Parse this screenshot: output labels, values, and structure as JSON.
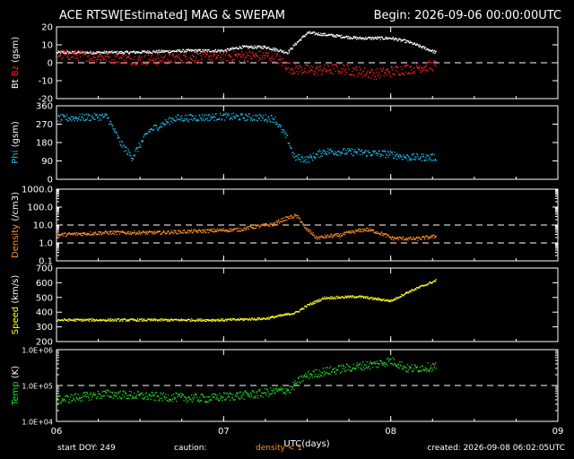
{
  "header": {
    "title": "ACE RTSW[Estimated] MAG & SWEPAM",
    "begin": "Begin: 2026-09-06 00:00:00UTC"
  },
  "footer": {
    "start_doy": "start DOY: 249",
    "caution": "caution:",
    "density_note": "density < 1",
    "created": "created: 2026-09-08 06:02:05UTC"
  },
  "colors": {
    "bt": "#ffffff",
    "bz": "#ff2020",
    "phi": "#22b8e8",
    "density": "#ff9020",
    "speed": "#ffff20",
    "temp": "#22dd22",
    "axis": "#ffffff"
  },
  "chart_data": {
    "type": "scatter",
    "x_axis": {
      "label": "UTC(days)",
      "ticks": [
        "06",
        "07",
        "08",
        "09"
      ],
      "range_days": [
        0,
        3
      ],
      "data_end_day": 2.27
    },
    "panels": [
      {
        "id": "mag",
        "ylabel_parts": [
          {
            "text": "Bt",
            "color": "#ffffff"
          },
          {
            "text": " Bz",
            "color": "#ff2020"
          },
          {
            "text": " (gsm)",
            "color": "#ffffff"
          }
        ],
        "scale": "linear",
        "ylim": [
          -20,
          20
        ],
        "ticks": [
          {
            "v": 20,
            "t": "20"
          },
          {
            "v": 10,
            "t": "10"
          },
          {
            "v": 0,
            "t": "0"
          },
          {
            "v": -10,
            "t": "-10"
          },
          {
            "v": -20,
            "t": "-20"
          }
        ],
        "ref_lines": [
          0
        ],
        "series": [
          {
            "name": "Bt",
            "color": "#ffffff",
            "noise": 0.8,
            "points": [
              [
                0,
                6
              ],
              [
                0.4,
                6
              ],
              [
                0.8,
                7
              ],
              [
                1.0,
                7
              ],
              [
                1.1,
                9
              ],
              [
                1.25,
                9
              ],
              [
                1.38,
                6
              ],
              [
                1.43,
                11
              ],
              [
                1.5,
                17
              ],
              [
                1.6,
                16
              ],
              [
                1.8,
                14
              ],
              [
                2.0,
                14
              ],
              [
                2.1,
                12
              ],
              [
                2.27,
                6
              ]
            ]
          },
          {
            "name": "Bz",
            "color": "#ff2020",
            "noise": 3.0,
            "points": [
              [
                0,
                5
              ],
              [
                0.2,
                4
              ],
              [
                0.5,
                2
              ],
              [
                0.8,
                3
              ],
              [
                1.0,
                4
              ],
              [
                1.3,
                4
              ],
              [
                1.4,
                -3
              ],
              [
                1.55,
                -4
              ],
              [
                1.7,
                -3
              ],
              [
                1.9,
                -6
              ],
              [
                2.1,
                -3
              ],
              [
                2.27,
                -1
              ]
            ]
          }
        ]
      },
      {
        "id": "phi",
        "ylabel_parts": [
          {
            "text": "Phi",
            "color": "#22b8e8"
          },
          {
            "text": " (gsm)",
            "color": "#ffffff"
          }
        ],
        "scale": "linear",
        "ylim": [
          0,
          360
        ],
        "ticks": [
          {
            "v": 360,
            "t": "360"
          },
          {
            "v": 270,
            "t": "270"
          },
          {
            "v": 180,
            "t": "180"
          },
          {
            "v": 90,
            "t": "90"
          },
          {
            "v": 0,
            "t": "0"
          }
        ],
        "series": [
          {
            "name": "Phi",
            "color": "#22b8e8",
            "noise": 18,
            "points": [
              [
                0,
                300
              ],
              [
                0.3,
                310
              ],
              [
                0.38,
                180
              ],
              [
                0.45,
                110
              ],
              [
                0.55,
                240
              ],
              [
                0.7,
                300
              ],
              [
                1.0,
                310
              ],
              [
                1.2,
                305
              ],
              [
                1.3,
                300
              ],
              [
                1.38,
                200
              ],
              [
                1.42,
                110
              ],
              [
                1.5,
                100
              ],
              [
                1.6,
                140
              ],
              [
                1.8,
                135
              ],
              [
                2.0,
                125
              ],
              [
                2.1,
                110
              ],
              [
                2.27,
                110
              ]
            ]
          }
        ]
      },
      {
        "id": "density",
        "ylabel_parts": [
          {
            "text": "Density",
            "color": "#ff9020"
          },
          {
            "text": " (/cm3)",
            "color": "#ffffff"
          }
        ],
        "scale": "log",
        "ylim": [
          0.1,
          1000
        ],
        "ticks": [
          {
            "v": 1000,
            "t": "1000.0"
          },
          {
            "v": 100,
            "t": "100.0"
          },
          {
            "v": 10,
            "t": "10.0"
          },
          {
            "v": 1,
            "t": "1.0"
          },
          {
            "v": 0.1,
            "t": "0.1"
          }
        ],
        "ref_lines": [
          10,
          1
        ],
        "series": [
          {
            "name": "Density",
            "color": "#ff9020",
            "noise": 0.1,
            "points": [
              [
                0,
                3
              ],
              [
                0.3,
                4
              ],
              [
                0.6,
                4
              ],
              [
                0.9,
                5
              ],
              [
                1.1,
                6
              ],
              [
                1.3,
                12
              ],
              [
                1.43,
                35
              ],
              [
                1.48,
                7
              ],
              [
                1.55,
                2
              ],
              [
                1.7,
                3
              ],
              [
                1.85,
                6
              ],
              [
                2.0,
                2
              ],
              [
                2.15,
                1.8
              ],
              [
                2.27,
                2.5
              ]
            ]
          }
        ]
      },
      {
        "id": "speed",
        "ylabel_parts": [
          {
            "text": "Speed",
            "color": "#ffff20"
          },
          {
            "text": " (km/s)",
            "color": "#ffffff"
          }
        ],
        "scale": "linear",
        "ylim": [
          200,
          700
        ],
        "ticks": [
          {
            "v": 700,
            "t": "700"
          },
          {
            "v": 600,
            "t": "600"
          },
          {
            "v": 500,
            "t": "500"
          },
          {
            "v": 400,
            "t": "400"
          },
          {
            "v": 300,
            "t": "300"
          },
          {
            "v": 200,
            "t": "200"
          }
        ],
        "series": [
          {
            "name": "Speed",
            "color": "#ffff20",
            "noise": 8,
            "points": [
              [
                0,
                350
              ],
              [
                0.5,
                350
              ],
              [
                1.0,
                350
              ],
              [
                1.25,
                360
              ],
              [
                1.43,
                400
              ],
              [
                1.5,
                450
              ],
              [
                1.6,
                500
              ],
              [
                1.8,
                510
              ],
              [
                2.0,
                480
              ],
              [
                2.1,
                540
              ],
              [
                2.27,
                620
              ]
            ]
          }
        ]
      },
      {
        "id": "temp",
        "ylabel_parts": [
          {
            "text": "Temp",
            "color": "#22dd22"
          },
          {
            "text": " (K)",
            "color": "#ffffff"
          }
        ],
        "scale": "log",
        "ylim": [
          10000,
          1000000
        ],
        "ticks": [
          {
            "v": 1000000,
            "t": "1.0E+06"
          },
          {
            "v": 100000,
            "t": "1.0E+05"
          },
          {
            "v": 10000,
            "t": "1.0E+04"
          }
        ],
        "ref_lines": [
          100000
        ],
        "series": [
          {
            "name": "Temp",
            "color": "#22dd22",
            "noise": 0.12,
            "points": [
              [
                0,
                40000
              ],
              [
                0.3,
                60000
              ],
              [
                0.6,
                50000
              ],
              [
                0.9,
                45000
              ],
              [
                1.2,
                60000
              ],
              [
                1.4,
                80000
              ],
              [
                1.5,
                200000
              ],
              [
                1.7,
                300000
              ],
              [
                1.9,
                400000
              ],
              [
                2.0,
                500000
              ],
              [
                2.1,
                300000
              ],
              [
                2.27,
                350000
              ]
            ]
          }
        ]
      }
    ]
  }
}
